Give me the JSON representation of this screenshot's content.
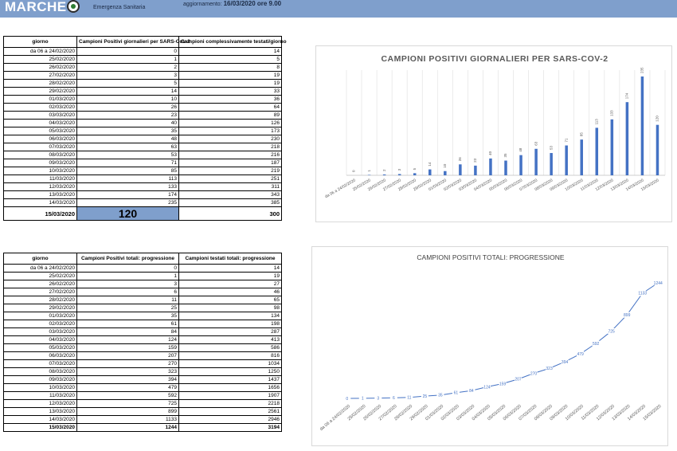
{
  "header": {
    "brand": "MARCHE",
    "subbrand": "Emergenza Sanitaria",
    "update_label": "aggiornamento:",
    "update_value": "16/03/2020 ore 9.00"
  },
  "colors": {
    "header_bg": "#7f9fcc",
    "bar": "#4472c4",
    "line": "#4472c4"
  },
  "table_daily": {
    "headers": [
      "giorno",
      "Campioni Positivi giornalieri per SARS-Cov-2",
      "Campioni complessivamente testati/giorno"
    ],
    "rows": [
      [
        "da 06 a 24/02/2020",
        "0",
        "14"
      ],
      [
        "25/02/2020",
        "1",
        "5"
      ],
      [
        "26/02/2020",
        "2",
        "8"
      ],
      [
        "27/02/2020",
        "3",
        "19"
      ],
      [
        "28/02/2020",
        "5",
        "19"
      ],
      [
        "29/02/2020",
        "14",
        "33"
      ],
      [
        "01/03/2020",
        "10",
        "36"
      ],
      [
        "02/03/2020",
        "26",
        "64"
      ],
      [
        "03/03/2020",
        "23",
        "89"
      ],
      [
        "04/03/2020",
        "40",
        "126"
      ],
      [
        "05/03/2020",
        "35",
        "173"
      ],
      [
        "06/03/2020",
        "48",
        "230"
      ],
      [
        "07/03/2020",
        "63",
        "218"
      ],
      [
        "08/03/2020",
        "53",
        "216"
      ],
      [
        "09/03/2020",
        "71",
        "187"
      ],
      [
        "10/03/2020",
        "85",
        "219"
      ],
      [
        "11/03/2020",
        "113",
        "251"
      ],
      [
        "12/03/2020",
        "133",
        "311"
      ],
      [
        "13/03/2020",
        "174",
        "343"
      ],
      [
        "14/03/2020",
        "235",
        "385"
      ]
    ],
    "last_row": [
      "15/03/2020",
      "120",
      "300"
    ]
  },
  "table_total": {
    "headers": [
      "giorno",
      "Campioni Positivi totali: progressione",
      "Campioni testati totali: progressione"
    ],
    "rows": [
      [
        "da 06 a 24/02/2020",
        "0",
        "14"
      ],
      [
        "25/02/2020",
        "1",
        "19"
      ],
      [
        "26/02/2020",
        "3",
        "27"
      ],
      [
        "27/02/2020",
        "6",
        "46"
      ],
      [
        "28/02/2020",
        "11",
        "65"
      ],
      [
        "29/02/2020",
        "25",
        "98"
      ],
      [
        "01/03/2020",
        "35",
        "134"
      ],
      [
        "02/03/2020",
        "61",
        "198"
      ],
      [
        "03/03/2020",
        "84",
        "287"
      ],
      [
        "04/03/2020",
        "124",
        "413"
      ],
      [
        "05/03/2020",
        "159",
        "586"
      ],
      [
        "06/03/2020",
        "207",
        "816"
      ],
      [
        "07/03/2020",
        "270",
        "1034"
      ],
      [
        "08/03/2020",
        "323",
        "1250"
      ],
      [
        "09/03/2020",
        "394",
        "1437"
      ],
      [
        "10/03/2020",
        "479",
        "1656"
      ],
      [
        "11/03/2020",
        "592",
        "1907"
      ],
      [
        "12/03/2020",
        "725",
        "2218"
      ],
      [
        "13/03/2020",
        "899",
        "2561"
      ],
      [
        "14/03/2020",
        "1133",
        "2946"
      ]
    ],
    "last_row": [
      "15/03/2020",
      "1244",
      "3194"
    ]
  },
  "chart_data": [
    {
      "type": "bar",
      "title": "CAMPIONI POSITIVI GIORNALIERI PER SARS-COV-2",
      "xlabel": "",
      "ylabel": "",
      "grid": "vertical",
      "categories": [
        "da 06 a 24/02/2020",
        "25/02/2020",
        "26/02/2020",
        "27/02/2020",
        "28/02/2020",
        "29/02/2020",
        "01/03/2020",
        "02/03/2020",
        "03/03/2020",
        "04/03/2020",
        "05/03/2020",
        "06/03/2020",
        "07/03/2020",
        "08/03/2020",
        "09/03/2020",
        "10/03/2020",
        "11/03/2020",
        "12/03/2020",
        "13/03/2020",
        "14/03/2020",
        "15/03/2020"
      ],
      "values": [
        0,
        1,
        2,
        3,
        5,
        14,
        10,
        26,
        23,
        40,
        35,
        48,
        63,
        53,
        71,
        85,
        113,
        133,
        174,
        235,
        120
      ],
      "ylim": [
        0,
        235
      ]
    },
    {
      "type": "line",
      "title": "CAMPIONI POSITIVI TOTALI: PROGRESSIONE",
      "xlabel": "",
      "ylabel": "",
      "grid": "none",
      "categories": [
        "da 06 a 24/02/2020",
        "25/02/2020",
        "26/02/2020",
        "27/02/2020",
        "28/02/2020",
        "29/02/2020",
        "01/03/2020",
        "02/03/2020",
        "03/03/2020",
        "04/03/2020",
        "05/03/2020",
        "06/03/2020",
        "07/03/2020",
        "08/03/2020",
        "09/03/2020",
        "10/03/2020",
        "11/03/2020",
        "12/03/2020",
        "13/03/2020",
        "14/03/2020",
        "15/03/2020"
      ],
      "values": [
        0,
        1,
        3,
        6,
        11,
        25,
        35,
        61,
        84,
        124,
        159,
        207,
        270,
        323,
        394,
        479,
        592,
        725,
        899,
        1133,
        1244
      ],
      "ylim": [
        0,
        1244
      ]
    }
  ]
}
